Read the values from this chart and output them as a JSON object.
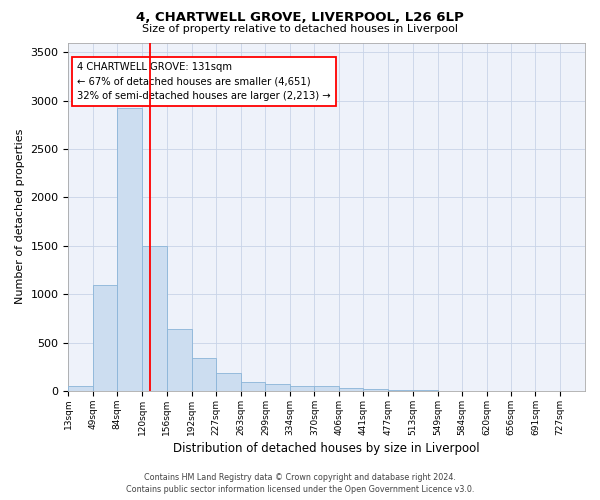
{
  "title": "4, CHARTWELL GROVE, LIVERPOOL, L26 6LP",
  "subtitle": "Size of property relative to detached houses in Liverpool",
  "xlabel": "Distribution of detached houses by size in Liverpool",
  "ylabel": "Number of detached properties",
  "footer_line1": "Contains HM Land Registry data © Crown copyright and database right 2024.",
  "footer_line2": "Contains public sector information licensed under the Open Government Licence v3.0.",
  "annotation_line1": "4 CHARTWELL GROVE: 131sqm",
  "annotation_line2": "← 67% of detached houses are smaller (4,651)",
  "annotation_line3": "32% of semi-detached houses are larger (2,213) →",
  "bar_color": "#ccddf0",
  "bar_edge_color": "#8ab4d8",
  "vline_color": "red",
  "background_color": "#eef2fa",
  "categories": [
    "13sqm",
    "49sqm",
    "84sqm",
    "120sqm",
    "156sqm",
    "192sqm",
    "227sqm",
    "263sqm",
    "299sqm",
    "334sqm",
    "370sqm",
    "406sqm",
    "441sqm",
    "477sqm",
    "513sqm",
    "549sqm",
    "584sqm",
    "620sqm",
    "656sqm",
    "691sqm",
    "727sqm"
  ],
  "bar_left_edges": [
    13,
    49,
    84,
    120,
    156,
    192,
    227,
    263,
    299,
    334,
    370,
    406,
    441,
    477,
    513,
    549,
    584,
    620,
    656,
    691
  ],
  "bar_widths": [
    36,
    35,
    36,
    36,
    36,
    35,
    36,
    36,
    35,
    36,
    36,
    35,
    36,
    36,
    36,
    35,
    36,
    36,
    35,
    36
  ],
  "bar_heights": [
    48,
    1100,
    2920,
    1500,
    640,
    340,
    190,
    95,
    70,
    55,
    55,
    30,
    20,
    15,
    10,
    5,
    5,
    3,
    2,
    2
  ],
  "ylim": [
    0,
    3600
  ],
  "yticks": [
    0,
    500,
    1000,
    1500,
    2000,
    2500,
    3000,
    3500
  ],
  "xlim": [
    13,
    763
  ],
  "vline_x": 131
}
